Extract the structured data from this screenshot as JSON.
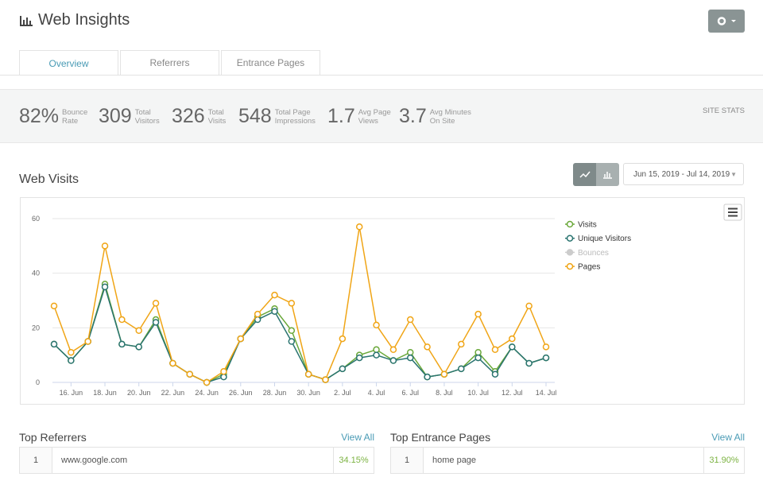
{
  "header": {
    "title": "Web Insights"
  },
  "tabs": [
    "Overview",
    "Referrers",
    "Entrance Pages"
  ],
  "stats": {
    "items": [
      {
        "value": "82%",
        "label": [
          "Bounce",
          "Rate"
        ]
      },
      {
        "value": "309",
        "label": [
          "Total",
          "Visitors"
        ]
      },
      {
        "value": "326",
        "label": [
          "Total",
          "Visits"
        ]
      },
      {
        "value": "548",
        "label": [
          "Total Page",
          "Impressions"
        ]
      },
      {
        "value": "1.7",
        "label": [
          "Avg Page",
          "Views"
        ]
      },
      {
        "value": "3.7",
        "label": [
          "Avg Minutes",
          "On Site"
        ]
      }
    ],
    "caption": "SITE STATS"
  },
  "visits_panel": {
    "title": "Web Visits",
    "date_range": "Jun 15, 2019 - Jul 14, 2019"
  },
  "chart_data": {
    "type": "line",
    "x": [
      "2019-06-15",
      "2019-06-16",
      "2019-06-17",
      "2019-06-18",
      "2019-06-19",
      "2019-06-20",
      "2019-06-21",
      "2019-06-22",
      "2019-06-23",
      "2019-06-24",
      "2019-06-25",
      "2019-06-26",
      "2019-06-27",
      "2019-06-28",
      "2019-06-29",
      "2019-06-30",
      "2019-07-01",
      "2019-07-02",
      "2019-07-03",
      "2019-07-04",
      "2019-07-05",
      "2019-07-06",
      "2019-07-07",
      "2019-07-08",
      "2019-07-09",
      "2019-07-10",
      "2019-07-11",
      "2019-07-12",
      "2019-07-13",
      "2019-07-14"
    ],
    "xticks": [
      {
        "value": "2019-06-16",
        "label": "16. Jun"
      },
      {
        "value": "2019-06-18",
        "label": "18. Jun"
      },
      {
        "value": "2019-06-20",
        "label": "20. Jun"
      },
      {
        "value": "2019-06-22",
        "label": "22. Jun"
      },
      {
        "value": "2019-06-24",
        "label": "24. Jun"
      },
      {
        "value": "2019-06-26",
        "label": "26. Jun"
      },
      {
        "value": "2019-06-28",
        "label": "28. Jun"
      },
      {
        "value": "2019-06-30",
        "label": "30. Jun"
      },
      {
        "value": "2019-07-02",
        "label": "2. Jul"
      },
      {
        "value": "2019-07-04",
        "label": "4. Jul"
      },
      {
        "value": "2019-07-06",
        "label": "6. Jul"
      },
      {
        "value": "2019-07-08",
        "label": "8. Jul"
      },
      {
        "value": "2019-07-10",
        "label": "10. Jul"
      },
      {
        "value": "2019-07-12",
        "label": "12. Jul"
      },
      {
        "value": "2019-07-14",
        "label": "14. Jul"
      }
    ],
    "ylim": [
      0,
      60
    ],
    "yticks": [
      0,
      20,
      40,
      60
    ],
    "grid": true,
    "legend": "right",
    "series": [
      {
        "name": "Visits",
        "color": "#6aa83a",
        "visible": true,
        "values": [
          14,
          8,
          15,
          36,
          14,
          13,
          23,
          7,
          3,
          0,
          3,
          16,
          24,
          27,
          19,
          3,
          1,
          5,
          10,
          12,
          8,
          11,
          2,
          3,
          5,
          11,
          4,
          13,
          7,
          9
        ]
      },
      {
        "name": "Unique Visitors",
        "color": "#2a7470",
        "visible": true,
        "values": [
          14,
          8,
          15,
          35,
          14,
          13,
          22,
          7,
          3,
          0,
          2,
          16,
          23,
          26,
          15,
          3,
          1,
          5,
          9,
          10,
          8,
          9,
          2,
          3,
          5,
          9,
          3,
          13,
          7,
          9
        ]
      },
      {
        "name": "Bounces",
        "color": "#cccccc",
        "visible": false,
        "values": [
          null,
          null,
          null,
          null,
          null,
          null,
          null,
          null,
          null,
          null,
          null,
          null,
          null,
          null,
          null,
          null,
          null,
          null,
          null,
          null,
          null,
          null,
          null,
          null,
          null,
          null,
          null,
          null,
          null,
          null
        ]
      },
      {
        "name": "Pages",
        "color": "#f0a516",
        "visible": true,
        "values": [
          28,
          11,
          15,
          50,
          23,
          19,
          29,
          7,
          3,
          0,
          4,
          16,
          25,
          32,
          29,
          3,
          1,
          16,
          57,
          21,
          12,
          23,
          13,
          3,
          14,
          25,
          12,
          16,
          28,
          13
        ]
      }
    ]
  },
  "referrers": {
    "title": "Top Referrers",
    "link": "View All",
    "rows": [
      [
        "1",
        "www.google.com",
        "34.15%"
      ]
    ]
  },
  "entrance": {
    "title": "Top Entrance Pages",
    "link": "View All",
    "rows": [
      [
        "1",
        "home page",
        "31.90%"
      ]
    ]
  }
}
